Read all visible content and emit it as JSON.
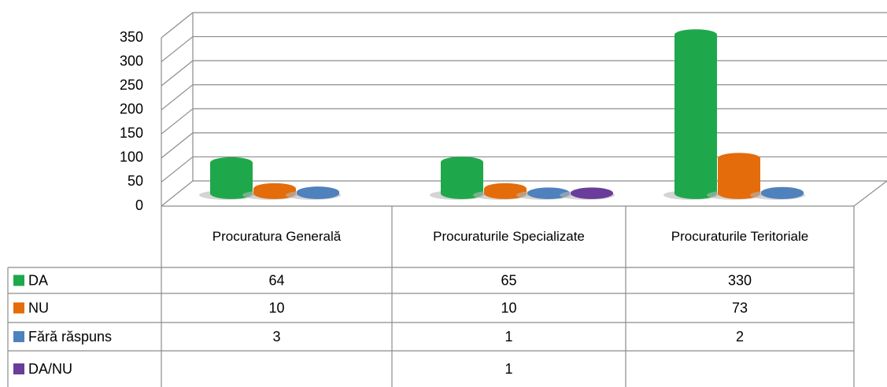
{
  "chart_data": {
    "type": "cylinder",
    "categories": [
      "Procuratura Generală",
      "Procuraturile Specializate",
      "Procuraturile Teritoriale"
    ],
    "series": [
      {
        "name": "DA",
        "color": "#1fa84b",
        "values": [
          64,
          65,
          330
        ]
      },
      {
        "name": "NU",
        "color": "#e46c0a",
        "values": [
          10,
          10,
          73
        ]
      },
      {
        "name": "Fără răspuns",
        "color": "#4f81bd",
        "values": [
          3,
          1,
          2
        ]
      },
      {
        "name": "DA/NU",
        "color": "#6a3d9a",
        "values": [
          null,
          1,
          null
        ]
      }
    ],
    "ylim": [
      0,
      350
    ],
    "yticks": [
      0,
      50,
      100,
      150,
      200,
      250,
      300,
      350
    ],
    "grid": true,
    "legend": "table"
  }
}
